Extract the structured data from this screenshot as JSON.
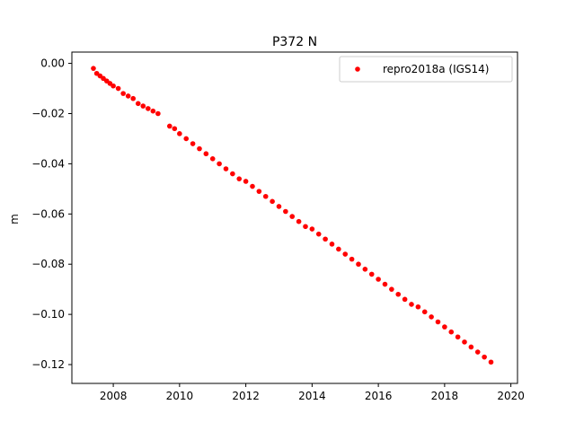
{
  "chart_data": {
    "type": "scatter",
    "title": "P372 N",
    "xlabel": "",
    "ylabel": "m",
    "xlim": [
      2006.75,
      2020.2
    ],
    "ylim": [
      -0.1275,
      0.0045
    ],
    "xticks": [
      2008,
      2010,
      2012,
      2014,
      2016,
      2018,
      2020
    ],
    "yticks": [
      0.0,
      -0.02,
      -0.04,
      -0.06,
      -0.08,
      -0.1,
      -0.12
    ],
    "ytick_labels": [
      "0.00",
      "−0.02",
      "−0.04",
      "−0.06",
      "−0.08",
      "−0.10",
      "−0.12"
    ],
    "grid": false,
    "legend_position": "top-right",
    "series": [
      {
        "name": "repro2018a (IGS14)",
        "color": "#ff0000",
        "marker": "circle",
        "x": [
          2007.4,
          2007.5,
          2007.6,
          2007.7,
          2007.8,
          2007.9,
          2008.0,
          2008.15,
          2008.3,
          2008.45,
          2008.6,
          2008.75,
          2008.9,
          2009.05,
          2009.2,
          2009.35,
          2009.7,
          2009.85,
          2010.0,
          2010.2,
          2010.4,
          2010.6,
          2010.8,
          2011.0,
          2011.2,
          2011.4,
          2011.6,
          2011.8,
          2012.0,
          2012.2,
          2012.4,
          2012.6,
          2012.8,
          2013.0,
          2013.2,
          2013.4,
          2013.6,
          2013.8,
          2014.0,
          2014.2,
          2014.4,
          2014.6,
          2014.8,
          2015.0,
          2015.2,
          2015.4,
          2015.6,
          2015.8,
          2016.0,
          2016.2,
          2016.4,
          2016.6,
          2016.8,
          2017.0,
          2017.2,
          2017.4,
          2017.6,
          2017.8,
          2018.0,
          2018.2,
          2018.4,
          2018.6,
          2018.8,
          2019.0,
          2019.2,
          2019.4
        ],
        "y": [
          -0.002,
          -0.004,
          -0.005,
          -0.006,
          -0.007,
          -0.008,
          -0.009,
          -0.01,
          -0.012,
          -0.013,
          -0.014,
          -0.016,
          -0.017,
          -0.018,
          -0.019,
          -0.02,
          -0.025,
          -0.026,
          -0.028,
          -0.03,
          -0.032,
          -0.034,
          -0.036,
          -0.038,
          -0.04,
          -0.042,
          -0.044,
          -0.046,
          -0.047,
          -0.049,
          -0.051,
          -0.053,
          -0.055,
          -0.057,
          -0.059,
          -0.061,
          -0.063,
          -0.065,
          -0.066,
          -0.068,
          -0.07,
          -0.072,
          -0.074,
          -0.076,
          -0.078,
          -0.08,
          -0.082,
          -0.084,
          -0.086,
          -0.088,
          -0.09,
          -0.092,
          -0.094,
          -0.096,
          -0.097,
          -0.099,
          -0.101,
          -0.103,
          -0.105,
          -0.107,
          -0.109,
          -0.111,
          -0.113,
          -0.115,
          -0.117,
          -0.119
        ]
      }
    ],
    "annotations": {
      "data_gap": [
        2009.4,
        2009.65
      ]
    }
  }
}
